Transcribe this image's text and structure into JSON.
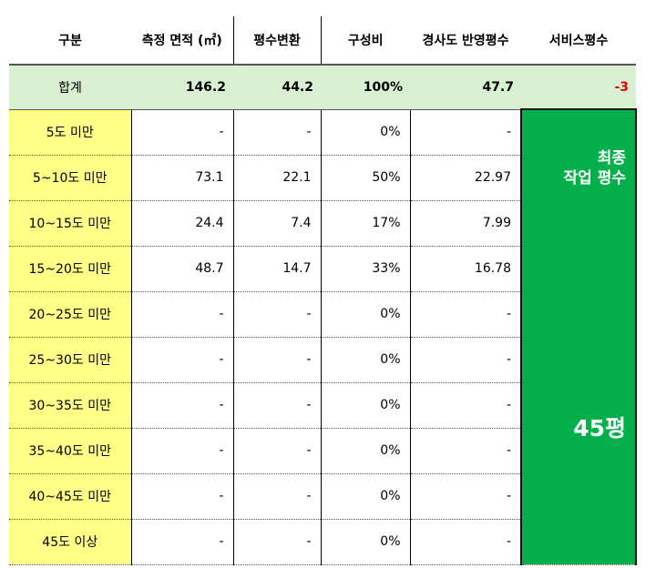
{
  "headers": [
    "구분",
    "측정 면적 (㎡)",
    "평수변환",
    "구성비",
    "경사도 반영평수",
    "서비스평수"
  ],
  "total": {
    "label": "합계",
    "area": "146.2",
    "pyeong": "44.2",
    "ratio": "100%",
    "slope_pyeong": "47.7",
    "service": "-3"
  },
  "rows": [
    {
      "label": "5도 미만",
      "area": "-",
      "pyeong": "-",
      "ratio": "0%",
      "slope_pyeong": "-"
    },
    {
      "label": "5~10도 미만",
      "area": "73.1",
      "pyeong": "22.1",
      "ratio": "50%",
      "slope_pyeong": "22.97"
    },
    {
      "label": "10~15도 미만",
      "area": "24.4",
      "pyeong": "7.4",
      "ratio": "17%",
      "slope_pyeong": "7.99"
    },
    {
      "label": "15~20도 미만",
      "area": "48.7",
      "pyeong": "14.7",
      "ratio": "33%",
      "slope_pyeong": "16.78"
    },
    {
      "label": "20~25도 미만",
      "area": "-",
      "pyeong": "-",
      "ratio": "0%",
      "slope_pyeong": "-"
    },
    {
      "label": "25~30도 미만",
      "area": "-",
      "pyeong": "-",
      "ratio": "0%",
      "slope_pyeong": "-"
    },
    {
      "label": "30~35도 미만",
      "area": "-",
      "pyeong": "-",
      "ratio": "0%",
      "slope_pyeong": "-"
    },
    {
      "label": "35~40도 미만",
      "area": "-",
      "pyeong": "-",
      "ratio": "0%",
      "slope_pyeong": "-"
    },
    {
      "label": "40~45도 미만",
      "area": "-",
      "pyeong": "-",
      "ratio": "0%",
      "slope_pyeong": "-"
    },
    {
      "label": "45도 이상",
      "area": "-",
      "pyeong": "-",
      "ratio": "0%",
      "slope_pyeong": "-"
    }
  ],
  "final": {
    "title_line1": "최종",
    "title_line2": "작업 평수",
    "value": "45평"
  },
  "colors": {
    "total_row_bg": "#d8f0cf",
    "label_col_bg": "#ffff88",
    "final_cell_bg": "#05b04c",
    "negative_text": "#e00000"
  }
}
